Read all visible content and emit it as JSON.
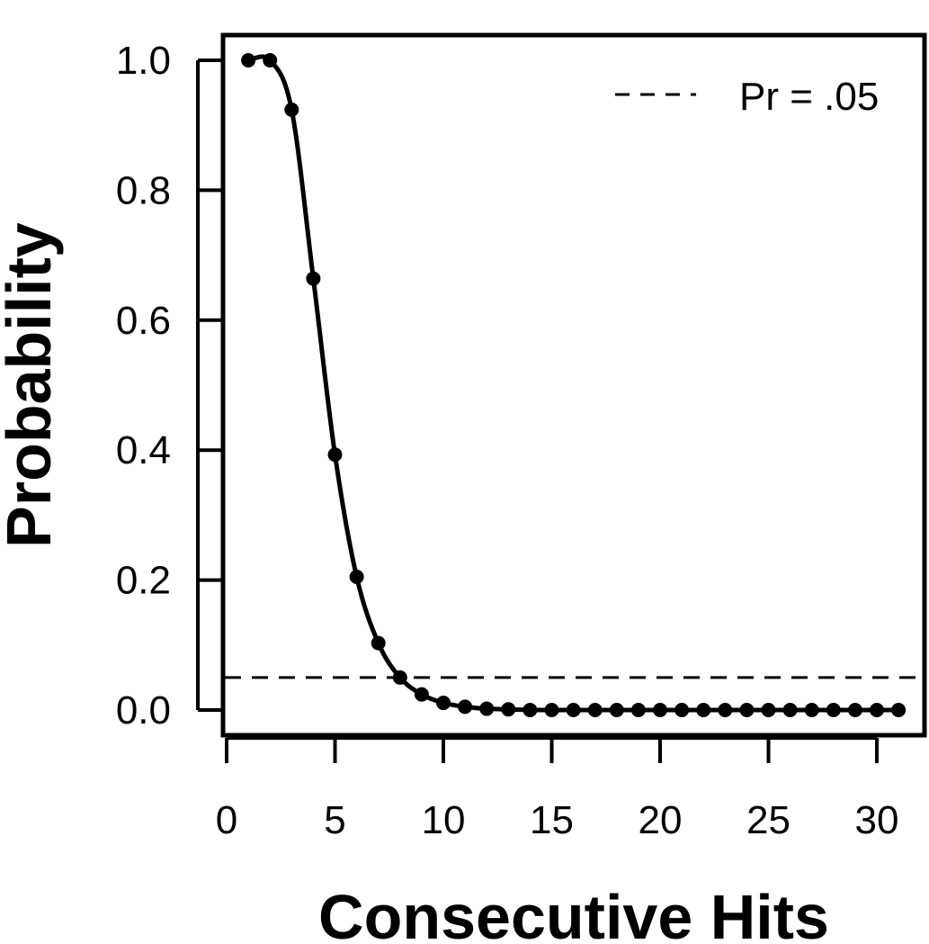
{
  "chart_data": {
    "type": "line",
    "title": "",
    "xlabel": "Consecutive Hits",
    "ylabel": "Probability",
    "xlim": [
      0,
      31
    ],
    "ylim": [
      0,
      1
    ],
    "xticks": [
      "0",
      "5",
      "10",
      "15",
      "20",
      "25",
      "30"
    ],
    "yticks": [
      "0.0",
      "0.2",
      "0.4",
      "0.6",
      "0.8",
      "1.0"
    ],
    "grid": false,
    "legend_position": "top-right",
    "series": [
      {
        "x": [
          1,
          2,
          3,
          4,
          5,
          6,
          7,
          8,
          9,
          10,
          11,
          12,
          13,
          14,
          15,
          16,
          17,
          18,
          19,
          20,
          21,
          22,
          23,
          24,
          25,
          26,
          27,
          28,
          29,
          30,
          31
        ],
        "values": [
          1.0,
          1.0,
          0.924,
          0.664,
          0.393,
          0.205,
          0.103,
          0.05,
          0.024,
          0.011,
          0.005,
          0.002,
          0.001,
          0.0,
          0.0,
          0.0,
          0.0,
          0.0,
          0.0,
          0.0,
          0.0,
          0.0,
          0.0,
          0.0,
          0.0,
          0.0,
          0.0,
          0.0,
          0.0,
          0.0,
          0.0
        ],
        "color": "#000000",
        "markers": true
      }
    ],
    "reference_lines": [
      {
        "y": 0.05,
        "style": "dashed",
        "label": "Pr = .05",
        "color": "#000000"
      }
    ]
  }
}
